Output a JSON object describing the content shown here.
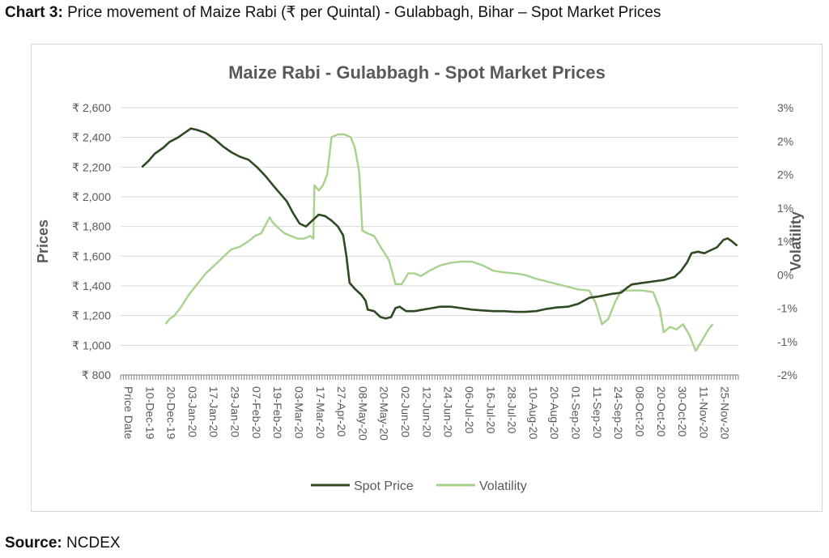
{
  "caption": {
    "label": "Chart 3:",
    "text": " Price movement of Maize Rabi (₹ per Quintal) - Gulabbagh, Bihar – Spot Market Prices"
  },
  "source": {
    "label": "Source:",
    "text": " NCDEX"
  },
  "colors": {
    "spot": "#2e4a23",
    "volatility": "#a9d18e",
    "grid": "#d9d9d9",
    "text": "#595959"
  },
  "chart_data": {
    "type": "line",
    "title": "Maize Rabi - Gulabbagh - Spot  Market Prices",
    "ylabel": "Prices",
    "y2label": "Volatility",
    "grid": true,
    "legend_position": "bottom",
    "ylim": [
      800,
      2600
    ],
    "yticks": [
      "₹ 2,600",
      "₹ 2,400",
      "₹ 2,200",
      "₹ 2,000",
      "₹ 1,800",
      "₹ 1,600",
      "₹ 1,400",
      "₹ 1,200",
      "₹ 1,000",
      "₹ 800"
    ],
    "y2lim": [
      -0.02,
      0.03
    ],
    "y2ticks": [
      "3%",
      "2%",
      "2%",
      "1%",
      "1%",
      "0%",
      "-1%",
      "-1%",
      "-2%"
    ],
    "x_first_label": "Price Date",
    "categories": [
      "10-Dec-19",
      "20-Dec-19",
      "03-Jan-20",
      "17-Jan-20",
      "29-Jan-20",
      "07-Feb-20",
      "19-Feb-20",
      "03-Mar-20",
      "17-Mar-20",
      "27-Apr-20",
      "08-May-20",
      "20-May-20",
      "02-Jun-20",
      "12-Jun-20",
      "24-Jun-20",
      "06-Jul-20",
      "16-Jul-20",
      "28-Jul-20",
      "10-Aug-20",
      "20-Aug-20",
      "01-Sep-20",
      "11-Sep-20",
      "24-Sep-20",
      "08-Oct-20",
      "20-Oct-20",
      "30-Oct-20",
      "11-Nov-20",
      "25-Nov-20"
    ],
    "series": [
      {
        "name": "Spot Price",
        "points": [
          [
            0,
            2200
          ],
          [
            0.3,
            2240
          ],
          [
            0.6,
            2290
          ],
          [
            1,
            2330
          ],
          [
            1.3,
            2370
          ],
          [
            1.7,
            2400
          ],
          [
            2,
            2430
          ],
          [
            2.3,
            2460
          ],
          [
            2.6,
            2450
          ],
          [
            3,
            2430
          ],
          [
            3.4,
            2390
          ],
          [
            3.8,
            2340
          ],
          [
            4.2,
            2300
          ],
          [
            4.6,
            2270
          ],
          [
            5,
            2250
          ],
          [
            5.4,
            2200
          ],
          [
            5.8,
            2140
          ],
          [
            6.2,
            2070
          ],
          [
            6.5,
            2020
          ],
          [
            6.8,
            1970
          ],
          [
            7.1,
            1890
          ],
          [
            7.4,
            1820
          ],
          [
            7.7,
            1800
          ],
          [
            8,
            1840
          ],
          [
            8.3,
            1880
          ],
          [
            8.6,
            1870
          ],
          [
            8.9,
            1840
          ],
          [
            9.2,
            1800
          ],
          [
            9.45,
            1740
          ],
          [
            9.6,
            1600
          ],
          [
            9.75,
            1420
          ],
          [
            10.0,
            1380
          ],
          [
            10.3,
            1340
          ],
          [
            10.5,
            1300
          ],
          [
            10.6,
            1240
          ],
          [
            10.9,
            1230
          ],
          [
            11.2,
            1190
          ],
          [
            11.45,
            1180
          ],
          [
            11.7,
            1190
          ],
          [
            11.9,
            1250
          ],
          [
            12.1,
            1260
          ],
          [
            12.4,
            1230
          ],
          [
            12.8,
            1230
          ],
          [
            13.2,
            1240
          ],
          [
            13.6,
            1250
          ],
          [
            14,
            1260
          ],
          [
            14.5,
            1260
          ],
          [
            15,
            1250
          ],
          [
            15.5,
            1240
          ],
          [
            16,
            1235
          ],
          [
            16.5,
            1230
          ],
          [
            17,
            1230
          ],
          [
            17.5,
            1225
          ],
          [
            18,
            1225
          ],
          [
            18.5,
            1230
          ],
          [
            19,
            1245
          ],
          [
            19.5,
            1255
          ],
          [
            20,
            1260
          ],
          [
            20.5,
            1280
          ],
          [
            21,
            1320
          ],
          [
            21.5,
            1330
          ],
          [
            22,
            1345
          ],
          [
            22.5,
            1355
          ],
          [
            22.8,
            1390
          ],
          [
            23,
            1410
          ],
          [
            23.5,
            1420
          ],
          [
            24,
            1430
          ],
          [
            24.5,
            1440
          ],
          [
            25,
            1460
          ],
          [
            25.3,
            1500
          ],
          [
            25.6,
            1560
          ],
          [
            25.8,
            1620
          ],
          [
            26.1,
            1630
          ],
          [
            26.4,
            1620
          ],
          [
            26.7,
            1640
          ],
          [
            27,
            1660
          ],
          [
            27.3,
            1710
          ],
          [
            27.5,
            1720
          ],
          [
            27.7,
            1700
          ],
          [
            27.95,
            1670
          ]
        ]
      },
      {
        "name": "Volatility",
        "points": [
          [
            1.1,
            -0.0105
          ],
          [
            1.3,
            -0.0095
          ],
          [
            1.5,
            -0.009
          ],
          [
            1.8,
            -0.0075
          ],
          [
            2.2,
            -0.005
          ],
          [
            2.6,
            -0.003
          ],
          [
            3,
            -0.001
          ],
          [
            3.4,
            0.0005
          ],
          [
            3.8,
            0.002
          ],
          [
            4.2,
            0.0035
          ],
          [
            4.6,
            0.004
          ],
          [
            5,
            0.005
          ],
          [
            5.3,
            0.006
          ],
          [
            5.6,
            0.0065
          ],
          [
            5.8,
            0.008
          ],
          [
            6.0,
            0.0095
          ],
          [
            6.15,
            0.0085
          ],
          [
            6.4,
            0.0075
          ],
          [
            6.7,
            0.0065
          ],
          [
            7,
            0.006
          ],
          [
            7.3,
            0.0055
          ],
          [
            7.6,
            0.0055
          ],
          [
            7.9,
            0.006
          ],
          [
            8.05,
            0.0055
          ],
          [
            8.1,
            0.0155
          ],
          [
            8.3,
            0.0145
          ],
          [
            8.5,
            0.0155
          ],
          [
            8.7,
            0.0175
          ],
          [
            8.9,
            0.0245
          ],
          [
            9.2,
            0.025
          ],
          [
            9.5,
            0.025
          ],
          [
            9.8,
            0.0245
          ],
          [
            10.0,
            0.0225
          ],
          [
            10.2,
            0.018
          ],
          [
            10.35,
            0.007
          ],
          [
            10.6,
            0.0065
          ],
          [
            10.9,
            0.006
          ],
          [
            11.2,
            0.004
          ],
          [
            11.6,
            0.0015
          ],
          [
            11.9,
            -0.003
          ],
          [
            12.2,
            -0.003
          ],
          [
            12.5,
            -0.001
          ],
          [
            12.8,
            -0.001
          ],
          [
            13.1,
            -0.0015
          ],
          [
            13.5,
            -0.0005
          ],
          [
            14,
            0.0005
          ],
          [
            14.5,
            0.001
          ],
          [
            15,
            0.0012
          ],
          [
            15.5,
            0.0012
          ],
          [
            16,
            0.0005
          ],
          [
            16.5,
            -0.0005
          ],
          [
            17,
            -0.0008
          ],
          [
            17.5,
            -0.001
          ],
          [
            18,
            -0.0013
          ],
          [
            18.5,
            -0.002
          ],
          [
            19,
            -0.0025
          ],
          [
            19.5,
            -0.003
          ],
          [
            20,
            -0.0035
          ],
          [
            20.5,
            -0.004
          ],
          [
            21,
            -0.0042
          ],
          [
            21.3,
            -0.0065
          ],
          [
            21.6,
            -0.0105
          ],
          [
            21.9,
            -0.0095
          ],
          [
            22.2,
            -0.0065
          ],
          [
            22.5,
            -0.0042
          ],
          [
            23,
            -0.0042
          ],
          [
            23.5,
            -0.0042
          ],
          [
            24,
            -0.0045
          ],
          [
            24.3,
            -0.0075
          ],
          [
            24.5,
            -0.012
          ],
          [
            24.8,
            -0.011
          ],
          [
            25.1,
            -0.0115
          ],
          [
            25.4,
            -0.0105
          ],
          [
            25.7,
            -0.0125
          ],
          [
            26.0,
            -0.0155
          ],
          [
            26.3,
            -0.0135
          ],
          [
            26.6,
            -0.0115
          ],
          [
            26.8,
            -0.0105
          ]
        ]
      }
    ]
  }
}
